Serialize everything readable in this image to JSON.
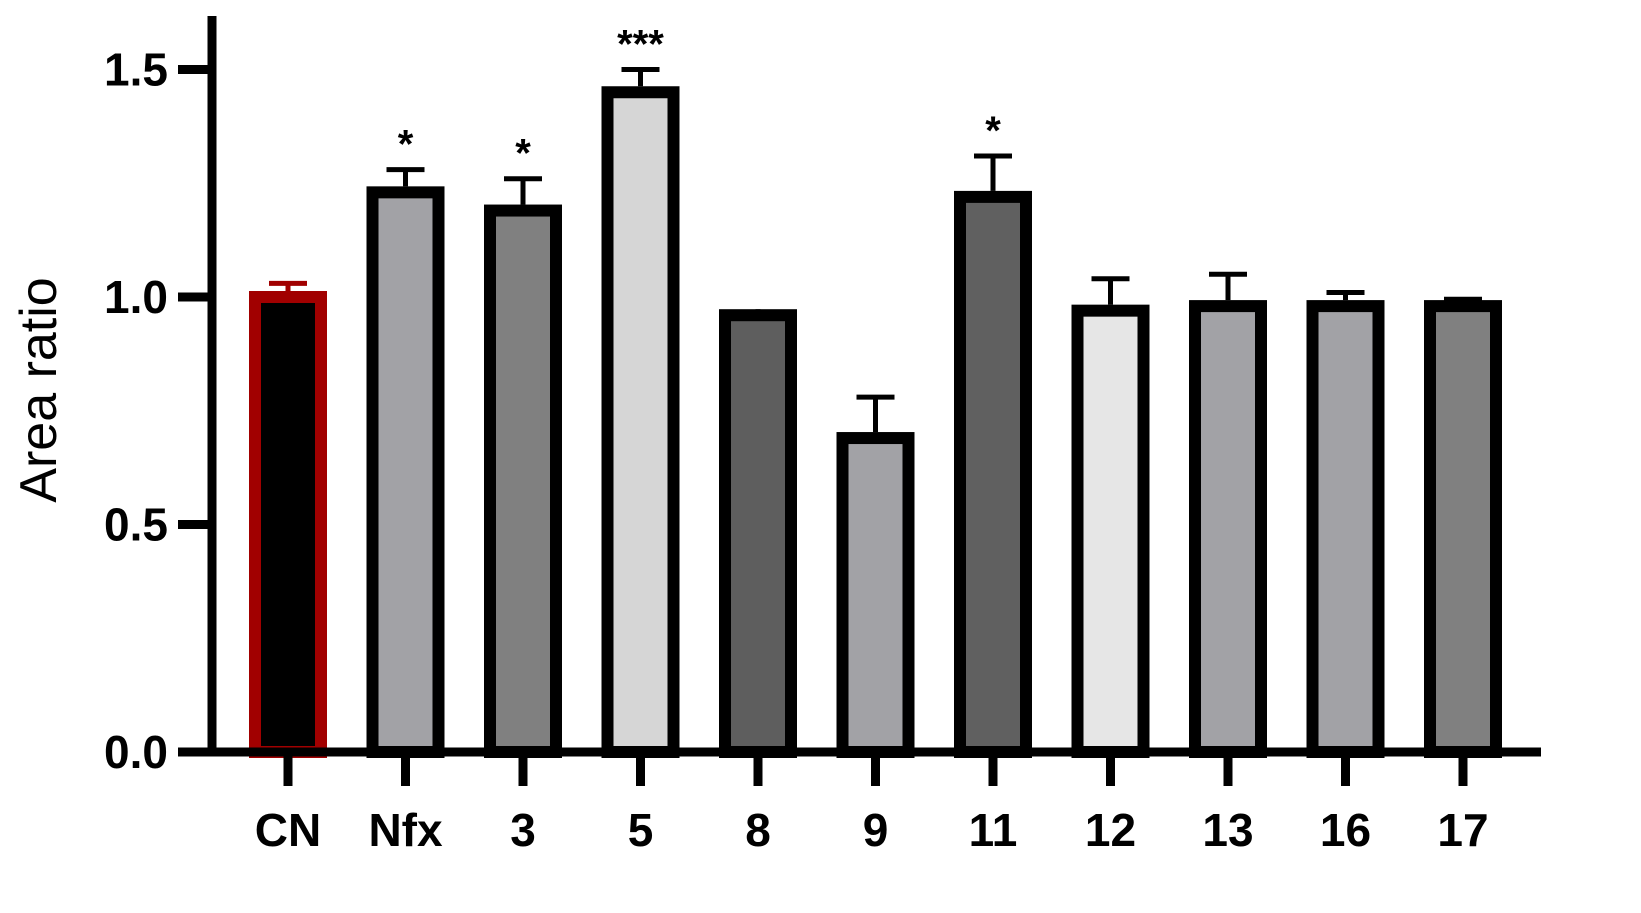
{
  "chart_data": {
    "type": "bar",
    "title": "",
    "xlabel": "",
    "ylabel": "Area ratio",
    "ylim": [
      0,
      1.6
    ],
    "yticks": [
      "0.0",
      "0.5",
      "1.0",
      "1.5"
    ],
    "ytick_values": [
      0,
      0.5,
      1.0,
      1.5
    ],
    "grid": false,
    "categories": [
      "CN",
      "Nfx",
      "3",
      "5",
      "8",
      "9",
      "11",
      "12",
      "13",
      "16",
      "17"
    ],
    "values": [
      1.0,
      1.23,
      1.19,
      1.45,
      0.96,
      0.69,
      1.22,
      0.97,
      0.98,
      0.98,
      0.98
    ],
    "errors": [
      0.03,
      0.05,
      0.07,
      0.05,
      0.005,
      0.09,
      0.09,
      0.07,
      0.07,
      0.03,
      0.015
    ],
    "significance": [
      "",
      "*",
      "*",
      "***",
      "",
      "",
      "*",
      "",
      "",
      "",
      ""
    ],
    "fill_colors": [
      "#000000",
      "#a2a2a6",
      "#808080",
      "#d6d6d6",
      "#5e5e5e",
      "#a2a2a6",
      "#606060",
      "#e6e6e6",
      "#a2a2a6",
      "#a2a2a6",
      "#808080"
    ],
    "stroke_colors": [
      "#a10000",
      "#000000",
      "#000000",
      "#000000",
      "#000000",
      "#000000",
      "#000000",
      "#000000",
      "#000000",
      "#000000",
      "#000000"
    ]
  }
}
